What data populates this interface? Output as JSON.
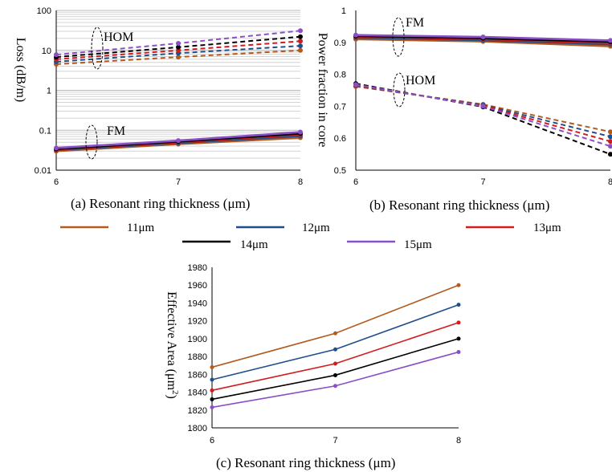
{
  "legend": [
    {
      "label": "11μm",
      "color": "#b35a1f"
    },
    {
      "label": "12μm",
      "color": "#1f4e8c"
    },
    {
      "label": "13μm",
      "color": "#d01c1c"
    },
    {
      "label": "14μm",
      "color": "#000000"
    },
    {
      "label": "15μm",
      "color": "#8a4fc7"
    }
  ],
  "chart_data": [
    {
      "id": "a",
      "type": "line",
      "caption": "(a) Resonant ring thickness (μm)",
      "xlabel": "Resonant ring thickness (μm)",
      "ylabel": "Loss (dB/m)",
      "yscale": "log",
      "xlim": [
        6,
        8
      ],
      "ylim": [
        0.01,
        100
      ],
      "xticks": [
        "6",
        "7",
        "8"
      ],
      "yticks": [
        "100",
        "10",
        "1",
        "0.1",
        "0.01"
      ],
      "grid": true,
      "x": [
        6,
        7,
        8
      ],
      "annotations": [
        "HOM",
        "FM"
      ],
      "series": [
        {
          "name": "11μm",
          "mode": "FM",
          "values": [
            0.03,
            0.045,
            0.065
          ]
        },
        {
          "name": "12μm",
          "mode": "FM",
          "values": [
            0.032,
            0.048,
            0.072
          ]
        },
        {
          "name": "13μm",
          "mode": "FM",
          "values": [
            0.033,
            0.05,
            0.078
          ]
        },
        {
          "name": "14μm",
          "mode": "FM",
          "values": [
            0.034,
            0.052,
            0.083
          ]
        },
        {
          "name": "15μm",
          "mode": "FM",
          "values": [
            0.036,
            0.055,
            0.09
          ]
        },
        {
          "name": "11μm",
          "mode": "HOM",
          "values": [
            4.5,
            6.8,
            10
          ]
        },
        {
          "name": "12μm",
          "mode": "HOM",
          "values": [
            5.2,
            8.5,
            13
          ]
        },
        {
          "name": "13μm",
          "mode": "HOM",
          "values": [
            6,
            10,
            17
          ]
        },
        {
          "name": "14μm",
          "mode": "HOM",
          "values": [
            6.8,
            12,
            22
          ]
        },
        {
          "name": "15μm",
          "mode": "HOM",
          "values": [
            7.8,
            15,
            31
          ]
        }
      ]
    },
    {
      "id": "b",
      "type": "line",
      "caption": "(b)   Resonant ring thickness (μm)",
      "xlabel": "Resonant ring thickness (μm)",
      "ylabel": "Power fraction in core",
      "xlim": [
        6,
        8
      ],
      "ylim": [
        0.5,
        1
      ],
      "xticks": [
        "6",
        "7",
        "8"
      ],
      "yticks": [
        "1",
        "0.9",
        "0.8",
        "0.7",
        "0.6",
        "0.5"
      ],
      "grid": false,
      "x": [
        6,
        7,
        8
      ],
      "annotations": [
        "FM",
        "HOM"
      ],
      "series": [
        {
          "name": "11μm",
          "mode": "FM",
          "values": [
            0.91,
            0.903,
            0.888
          ]
        },
        {
          "name": "12μm",
          "mode": "FM",
          "values": [
            0.915,
            0.907,
            0.894
          ]
        },
        {
          "name": "13μm",
          "mode": "FM",
          "values": [
            0.918,
            0.91,
            0.898
          ]
        },
        {
          "name": "14μm",
          "mode": "FM",
          "values": [
            0.92,
            0.913,
            0.902
          ]
        },
        {
          "name": "15μm",
          "mode": "FM",
          "values": [
            0.923,
            0.917,
            0.906
          ]
        },
        {
          "name": "11μm",
          "mode": "HOM",
          "values": [
            0.762,
            0.706,
            0.62
          ]
        },
        {
          "name": "12μm",
          "mode": "HOM",
          "values": [
            0.764,
            0.704,
            0.605
          ]
        },
        {
          "name": "13μm",
          "mode": "HOM",
          "values": [
            0.766,
            0.702,
            0.59
          ]
        },
        {
          "name": "14μm",
          "mode": "HOM",
          "values": [
            0.771,
            0.698,
            0.55
          ]
        },
        {
          "name": "15μm",
          "mode": "HOM",
          "values": [
            0.768,
            0.7,
            0.575
          ]
        }
      ]
    },
    {
      "id": "c",
      "type": "line",
      "caption": "(c) Resonant ring thickness (μm)",
      "xlabel": "Resonant ring thickness (μm)",
      "ylabel": "Effective Area (μm",
      "ylabel_sup": "2",
      "ylabel_end": ")",
      "xlim": [
        6,
        8
      ],
      "ylim": [
        1800,
        1980
      ],
      "xticks": [
        "6",
        "7",
        "8"
      ],
      "yticks": [
        "1980",
        "1960",
        "1940",
        "1920",
        "1900",
        "1880",
        "1860",
        "1840",
        "1820",
        "1800"
      ],
      "grid": false,
      "x": [
        6,
        7,
        8
      ],
      "series": [
        {
          "name": "11μm",
          "values": [
            1868,
            1906,
            1960
          ]
        },
        {
          "name": "12μm",
          "values": [
            1854,
            1888,
            1938
          ]
        },
        {
          "name": "13μm",
          "values": [
            1842,
            1872,
            1918
          ]
        },
        {
          "name": "14μm",
          "values": [
            1832,
            1859,
            1900
          ]
        },
        {
          "name": "15μm",
          "values": [
            1823,
            1847,
            1885
          ]
        }
      ]
    }
  ]
}
